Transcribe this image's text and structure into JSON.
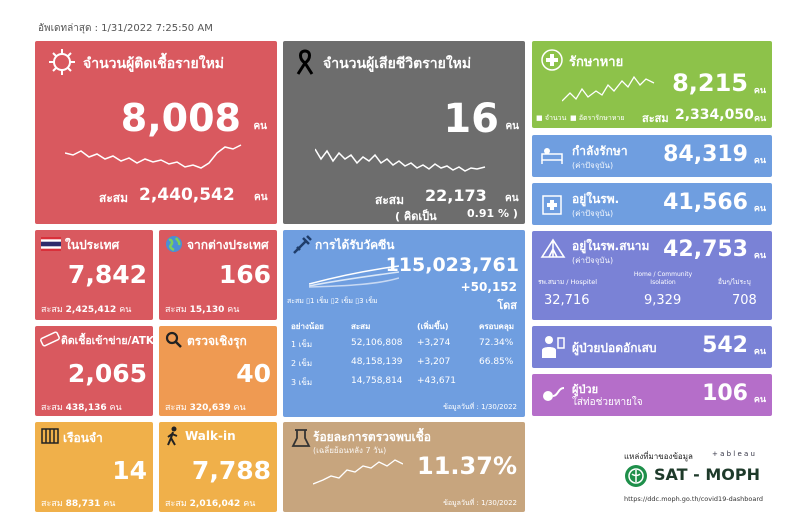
{
  "updated": "อัพเดทล่าสุด : 1/31/2022 7:25:50 AM",
  "unit": "คน",
  "accum_label": "สะสม",
  "new_cases": {
    "title": "จำนวนผู้ติดเชื้อรายใหม่",
    "value": "8,008",
    "accum": "2,440,542",
    "color": "#d9595f"
  },
  "new_deaths": {
    "title": "จำนวนผู้เสียชีวิตรายใหม่",
    "value": "16",
    "accum": "22,173",
    "percent_label": "( คิดเป็น",
    "percent": "0.91 % )",
    "color": "#6d6d6d"
  },
  "recovered": {
    "title": "รักษาหาย",
    "value": "8,215",
    "accum": "2,334,050",
    "legend_count": "จำนวน",
    "legend_rate": "อัตรารักษาหาย",
    "color": "#8dc24a"
  },
  "treating": {
    "title": "กำลังรักษา",
    "subtitle": "(ค่าปัจจุบัน)",
    "value": "84,319",
    "color": "#6f9ee0"
  },
  "in_hospital": {
    "title": "อยู่ในรพ.",
    "subtitle": "(ค่าปัจจุบัน)",
    "value": "41,566",
    "color": "#6f9ee0"
  },
  "domestic": {
    "title": "ในประเทศ",
    "value": "7,842",
    "accum": "2,425,412",
    "color": "#d9595f"
  },
  "abroad": {
    "title": "จากต่างประเทศ",
    "value": "166",
    "accum": "15,130",
    "color": "#d9595f"
  },
  "vaccine": {
    "title": "การได้รับวัคซีน",
    "total": "115,023,761",
    "added": "+50,152",
    "dose_unit": "โดส",
    "legend": "สะสม",
    "legend_d1": "1 เข็ม",
    "legend_d2": "2 เข็ม",
    "legend_d3": "3 เข็ม",
    "headers": [
      "อย่างน้อย",
      "สะสม",
      "(เพิ่มขึ้น)",
      "ครอบคลุม"
    ],
    "rows": [
      {
        "dose": "1 เข็ม",
        "accum": "52,106,808",
        "added": "+3,274",
        "coverage": "72.34%"
      },
      {
        "dose": "2 เข็ม",
        "accum": "48,158,139",
        "added": "+3,207",
        "coverage": "66.85%"
      },
      {
        "dose": "3 เข็ม",
        "accum": "14,758,814",
        "added": "+43,671",
        "coverage": ""
      }
    ],
    "data_date": "ข้อมูลวันที่ : 1/30/2022",
    "color": "#6f9ee0"
  },
  "field_hospital": {
    "title": "อยู่ในรพ.สนาม",
    "subtitle": "(ค่าปัจจุบัน)",
    "value": "42,753",
    "col1_label": "รพ.สนาม / Hospitel",
    "col2_label": "Home / Community Isolation",
    "col3_label": "อื่นๆ/ไม่ระบุ",
    "col1": "32,716",
    "col2": "9,329",
    "col3": "708",
    "color": "#7a82d6"
  },
  "prison": {
    "title": "ติดเชื้อเข้าข่าย/ATK",
    "value": "2,065",
    "accum": "438,136",
    "color": "#d9595f"
  },
  "proactive": {
    "title": "ตรวจเชิงรุก",
    "value": "40",
    "accum": "320,639",
    "color": "#ef9a52"
  },
  "pneumonia": {
    "title": "ผู้ป่วยปอดอักเสบ",
    "value": "542",
    "color": "#7a82d6"
  },
  "ventilator": {
    "title": "ผู้ป่วย",
    "title2": "ใส่ท่อช่วยหายใจ",
    "value": "106",
    "color": "#b56ec9"
  },
  "jail": {
    "title": "เรือนจำ",
    "value": "14",
    "accum": "88,731",
    "color": "#f0b04a"
  },
  "walkin": {
    "title": "Walk-in",
    "value": "7,788",
    "accum": "2,016,042",
    "color": "#f0b04a"
  },
  "positivity": {
    "title": "ร้อยละการตรวจพบเชื้อ",
    "subtitle": "(เฉลี่ยย้อนหลัง 7 วัน)",
    "value": "11.37%",
    "data_date": "ข้อมูลวันที่ : 1/30/2022",
    "color": "#c7a57e"
  },
  "source": {
    "label": "แหล่งที่มาของข้อมูล",
    "tableau": "+ a b l e a u",
    "org": "SAT - MOPH",
    "url": "https://ddc.moph.go.th/covid19-dashboard"
  }
}
